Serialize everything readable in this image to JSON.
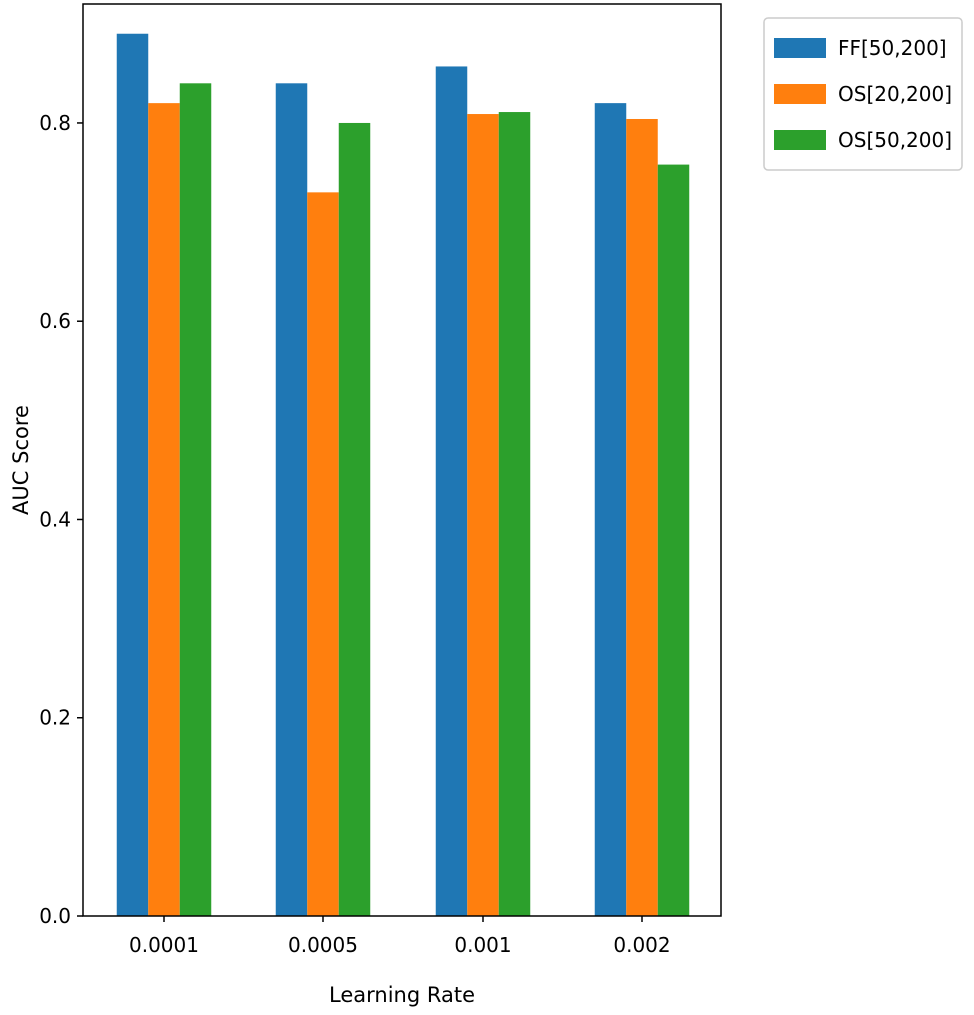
{
  "chart_data": {
    "type": "bar",
    "title": "",
    "xlabel": "Learning Rate",
    "ylabel": "AUC Score",
    "categories": [
      "0.0001",
      "0.0005",
      "0.001",
      "0.002"
    ],
    "series": [
      {
        "name": "FF[50,200]",
        "color": "#1f77b4",
        "values": [
          0.89,
          0.84,
          0.857,
          0.82
        ]
      },
      {
        "name": "OS[20,200]",
        "color": "#ff7f0e",
        "values": [
          0.82,
          0.73,
          0.809,
          0.804
        ]
      },
      {
        "name": "OS[50,200]",
        "color": "#2ca02c",
        "values": [
          0.84,
          0.8,
          0.811,
          0.758
        ]
      }
    ],
    "ylim": [
      0,
      0.92
    ],
    "yticks": [
      0.0,
      0.2,
      0.4,
      0.6,
      0.8
    ],
    "ytick_labels": [
      "0.0",
      "0.2",
      "0.4",
      "0.6",
      "0.8"
    ],
    "grid": false,
    "legend_position": "outside-top-right"
  }
}
